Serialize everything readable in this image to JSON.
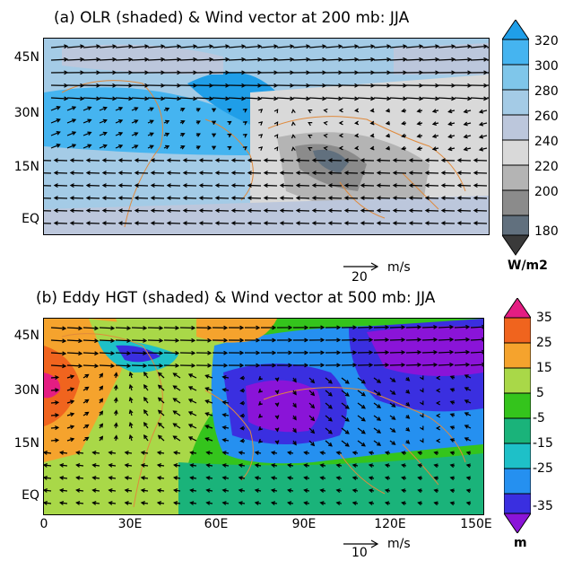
{
  "panel_a": {
    "title": "(a) OLR (shaded) & Wind vector at 200 mb: JJA",
    "lat_labels": [
      "45N",
      "30N",
      "15N",
      "EQ"
    ],
    "ref_vector_value": "20",
    "ref_vector_units": "m/s",
    "colorbar": {
      "ticks": [
        "320",
        "300",
        "280",
        "260",
        "240",
        "220",
        "200",
        "180"
      ],
      "units": "W/m2",
      "colors": [
        "#1f9ee8",
        "#45b4f0",
        "#7fc6ea",
        "#a4cbe6",
        "#bcc7dc",
        "#d9d9d9",
        "#b4b4b4",
        "#8b8b8b",
        "#61707e",
        "#3a3a3a"
      ]
    }
  },
  "panel_b": {
    "title": "(b) Eddy HGT (shaded) & Wind vector at 500 mb: JJA",
    "lat_labels": [
      "45N",
      "30N",
      "15N",
      "EQ"
    ],
    "lon_labels": [
      "0",
      "30E",
      "60E",
      "90E",
      "120E",
      "150E"
    ],
    "ref_vector_value": "10",
    "ref_vector_units": "m/s",
    "colorbar": {
      "ticks": [
        "35",
        "25",
        "15",
        "5",
        "-5",
        "-15",
        "-25",
        "-35"
      ],
      "units": "m",
      "colors": [
        "#e41d82",
        "#f0641e",
        "#f5a32d",
        "#a9d848",
        "#34c41c",
        "#1ab37a",
        "#1ec0c8",
        "#2590f0",
        "#3a2fe0",
        "#8a14d8"
      ]
    }
  }
}
